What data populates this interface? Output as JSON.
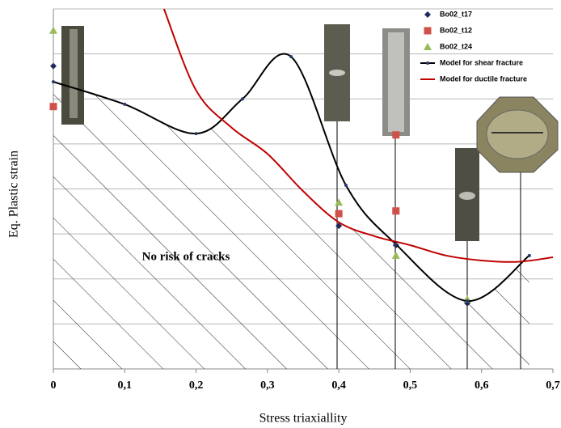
{
  "chart_data": {
    "type": "scatter",
    "x_label": "Stress triaxiallity",
    "y_label": "Eq. Plastic strain",
    "annotation": "No risk of cracks",
    "xlim": [
      0,
      0.7
    ],
    "xticks": [
      0,
      {
        "value": 0.1,
        "label": "0,1"
      },
      {
        "value": 0.2,
        "label": "0,2"
      },
      {
        "value": 0.3,
        "label": "0,3"
      },
      {
        "value": 0.4,
        "label": "0,4"
      },
      {
        "value": 0.5,
        "label": "0,5"
      },
      {
        "value": 0.6,
        "label": "0,6"
      },
      {
        "value": 0.7,
        "label": "0,7"
      }
    ],
    "ylim": [
      0,
      8
    ],
    "yticks": [
      0,
      1,
      2,
      3,
      4,
      5,
      6,
      7,
      8
    ],
    "grid": true,
    "legend": "top-right",
    "series": [
      {
        "name": "Bo02_t17",
        "type": "scatter",
        "marker": "diamond",
        "color": "#1f2a5a",
        "x": [
          0,
          0.4,
          0.48,
          0.58
        ],
        "values": [
          6.73,
          3.18,
          2.75,
          1.46
        ]
      },
      {
        "name": "Bo02_t12",
        "type": "scatter",
        "marker": "square",
        "color": "#d0504a",
        "x": [
          0,
          0.4,
          0.48,
          0.48
        ],
        "values": [
          5.83,
          3.45,
          5.2,
          3.51
        ]
      },
      {
        "name": "Bo02_t24",
        "type": "scatter",
        "marker": "triangle",
        "color": "#9bbb59",
        "x": [
          0,
          0.4,
          0.48,
          0.58
        ],
        "values": [
          7.52,
          3.7,
          2.52,
          1.55
        ]
      },
      {
        "name": "Model for shear fracture",
        "type": "line",
        "color": "#000000",
        "x": [
          0,
          0.1,
          0.2,
          0.265,
          0.333,
          0.41,
          0.48,
          0.58,
          0.667
        ],
        "values": [
          6.38,
          5.88,
          5.23,
          6.0,
          6.94,
          4.08,
          2.77,
          1.51,
          2.52
        ]
      },
      {
        "name": "Model for ductile fracture",
        "type": "line",
        "color": "#c00000",
        "x": [
          0.155,
          0.2,
          0.25,
          0.3,
          0.35,
          0.4,
          0.45,
          0.5,
          0.55,
          0.6,
          0.65,
          0.7
        ],
        "values": [
          8.0,
          6.19,
          5.36,
          4.78,
          3.95,
          3.26,
          2.95,
          2.75,
          2.52,
          2.41,
          2.38,
          2.48
        ]
      }
    ]
  }
}
